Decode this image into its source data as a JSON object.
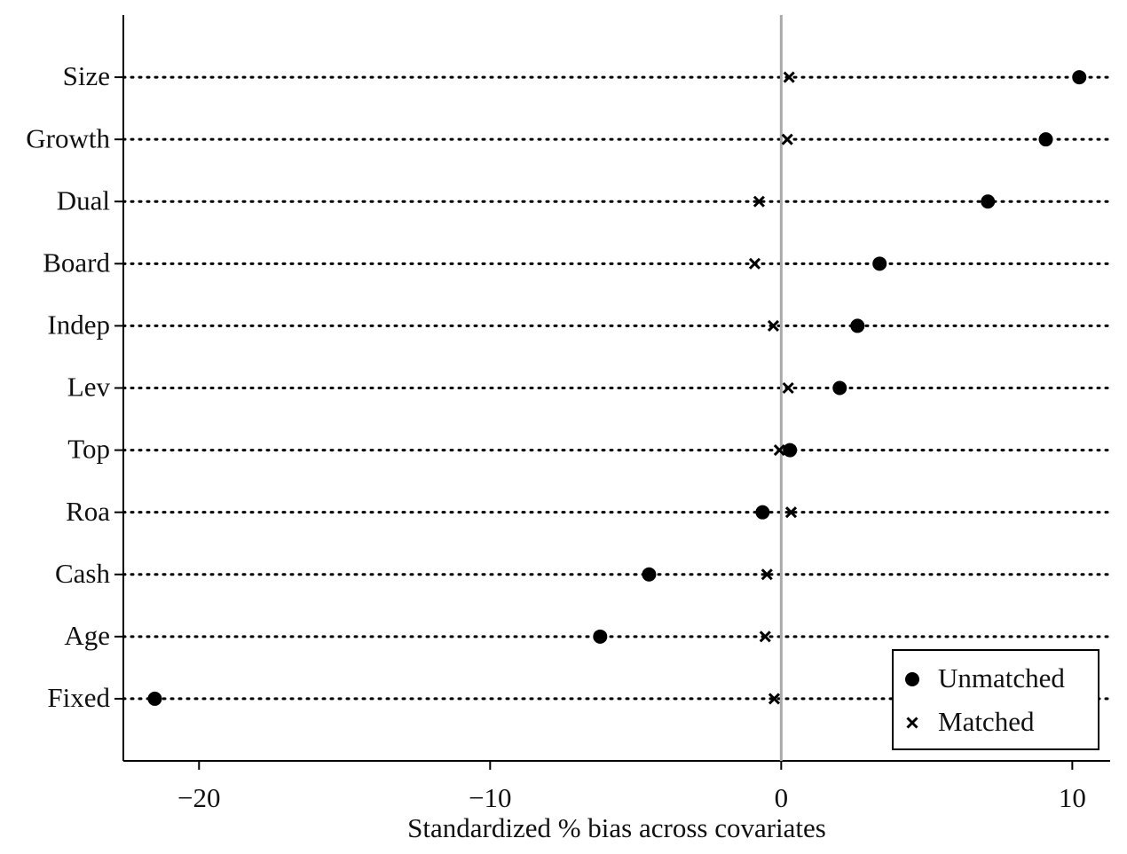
{
  "chart_data": {
    "type": "dot",
    "xlabel": "Standardized % bias across covariates",
    "categories": [
      "Size",
      "Growth",
      "Dual",
      "Board",
      "Indep",
      "Lev",
      "Top",
      "Roa",
      "Cash",
      "Age",
      "Fixed"
    ],
    "series": [
      {
        "name": "Unmatched",
        "color": "#000000",
        "marker": "circle",
        "values": [
          10.24,
          9.09,
          7.1,
          3.38,
          2.62,
          2.01,
          0.3,
          -0.64,
          -4.54,
          -6.22,
          -21.52
        ]
      },
      {
        "name": "Matched",
        "color": "#000000",
        "marker": "x",
        "values": [
          0.27,
          0.21,
          -0.76,
          -0.91,
          -0.27,
          0.24,
          -0.06,
          0.34,
          -0.49,
          -0.55,
          -0.24
        ]
      }
    ],
    "xlim": [
      -22.6,
      11.3
    ],
    "xticks": [
      {
        "value": -20,
        "label": "−20"
      },
      {
        "value": -10,
        "label": "−10"
      },
      0,
      10
    ],
    "reference_line": 0,
    "legend": "lower right"
  }
}
